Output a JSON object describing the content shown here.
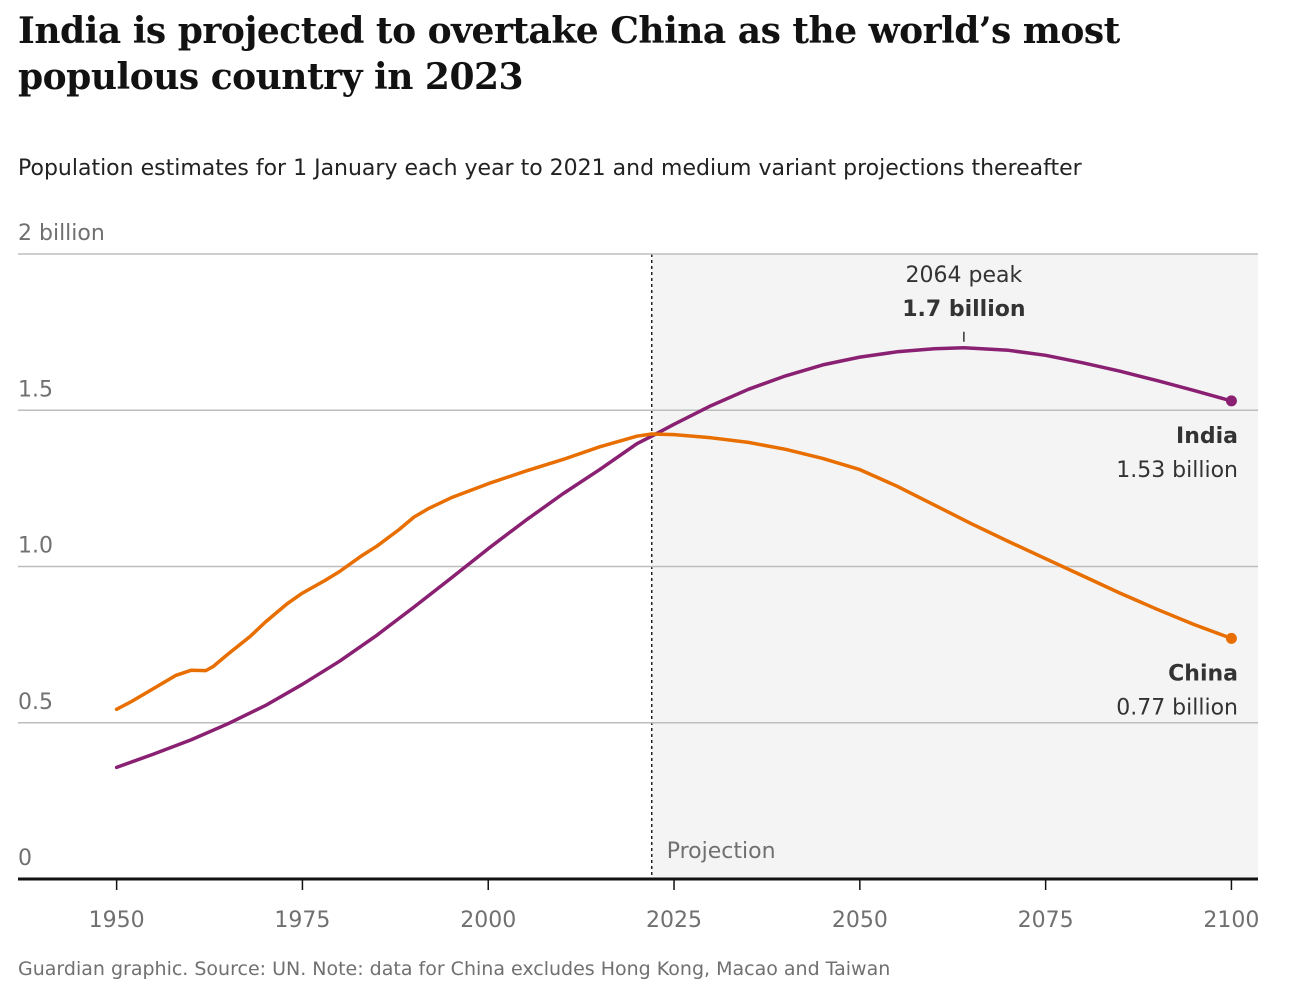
{
  "title": "India is projected to overtake China as the world’s most populous country in 2023",
  "subtitle": "Population estimates for 1 January each year to 2021 and medium variant projections thereafter",
  "source": "Guardian graphic. Source: UN. Note: data for China excludes Hong Kong, Macao and Taiwan",
  "chart_data": {
    "type": "line",
    "y_tick_labels": [
      "0",
      "0.5",
      "1.0",
      "1.5",
      "2 billion"
    ],
    "y_ticks": [
      0,
      0.5,
      1.0,
      1.5,
      2.0
    ],
    "x_tick_labels": [
      "1950",
      "1975",
      "2000",
      "2025",
      "2050",
      "2075",
      "2100"
    ],
    "x_ticks": [
      1950,
      1975,
      2000,
      2025,
      2050,
      2075,
      2100
    ],
    "xlim": [
      1944.6,
      2102.6
    ],
    "ylim": [
      0,
      2
    ],
    "grid": true,
    "projection_start": 2022,
    "projection_label": "Projection",
    "series": [
      {
        "name": "India",
        "color": "#8a2072",
        "end_label": "India",
        "end_value_label": "1.53 billion",
        "x": [
          1950,
          1955,
          1960,
          1965,
          1970,
          1975,
          1980,
          1985,
          1990,
          1995,
          2000,
          2005,
          2010,
          2015,
          2020,
          2022,
          2025,
          2030,
          2035,
          2040,
          2045,
          2050,
          2055,
          2060,
          2064,
          2070,
          2075,
          2080,
          2085,
          2090,
          2095,
          2100
        ],
        "y": [
          0.357,
          0.4,
          0.445,
          0.497,
          0.555,
          0.623,
          0.697,
          0.78,
          0.87,
          0.963,
          1.057,
          1.147,
          1.232,
          1.31,
          1.393,
          1.417,
          1.455,
          1.515,
          1.567,
          1.61,
          1.645,
          1.67,
          1.687,
          1.697,
          1.7,
          1.692,
          1.676,
          1.652,
          1.625,
          1.595,
          1.563,
          1.53
        ]
      },
      {
        "name": "China",
        "color": "#e86e00",
        "end_label": "China",
        "end_value_label": "0.77 billion",
        "x": [
          1950,
          1952,
          1955,
          1958,
          1960,
          1962,
          1963,
          1965,
          1968,
          1970,
          1973,
          1975,
          1978,
          1980,
          1983,
          1985,
          1988,
          1990,
          1992,
          1995,
          2000,
          2005,
          2010,
          2015,
          2020,
          2022,
          2025,
          2030,
          2035,
          2040,
          2045,
          2050,
          2055,
          2060,
          2065,
          2070,
          2075,
          2080,
          2085,
          2090,
          2095,
          2100
        ],
        "y": [
          0.543,
          0.568,
          0.61,
          0.652,
          0.668,
          0.667,
          0.68,
          0.72,
          0.777,
          0.822,
          0.882,
          0.915,
          0.955,
          0.984,
          1.035,
          1.065,
          1.118,
          1.158,
          1.186,
          1.22,
          1.265,
          1.305,
          1.342,
          1.383,
          1.417,
          1.424,
          1.422,
          1.412,
          1.397,
          1.375,
          1.346,
          1.31,
          1.257,
          1.197,
          1.137,
          1.08,
          1.025,
          0.97,
          0.915,
          0.863,
          0.814,
          0.77
        ]
      }
    ],
    "annotations": [
      {
        "x": 2064,
        "y": 1.7,
        "label": "2064 peak",
        "value_label": "1.7 billion",
        "series": "India"
      }
    ]
  }
}
